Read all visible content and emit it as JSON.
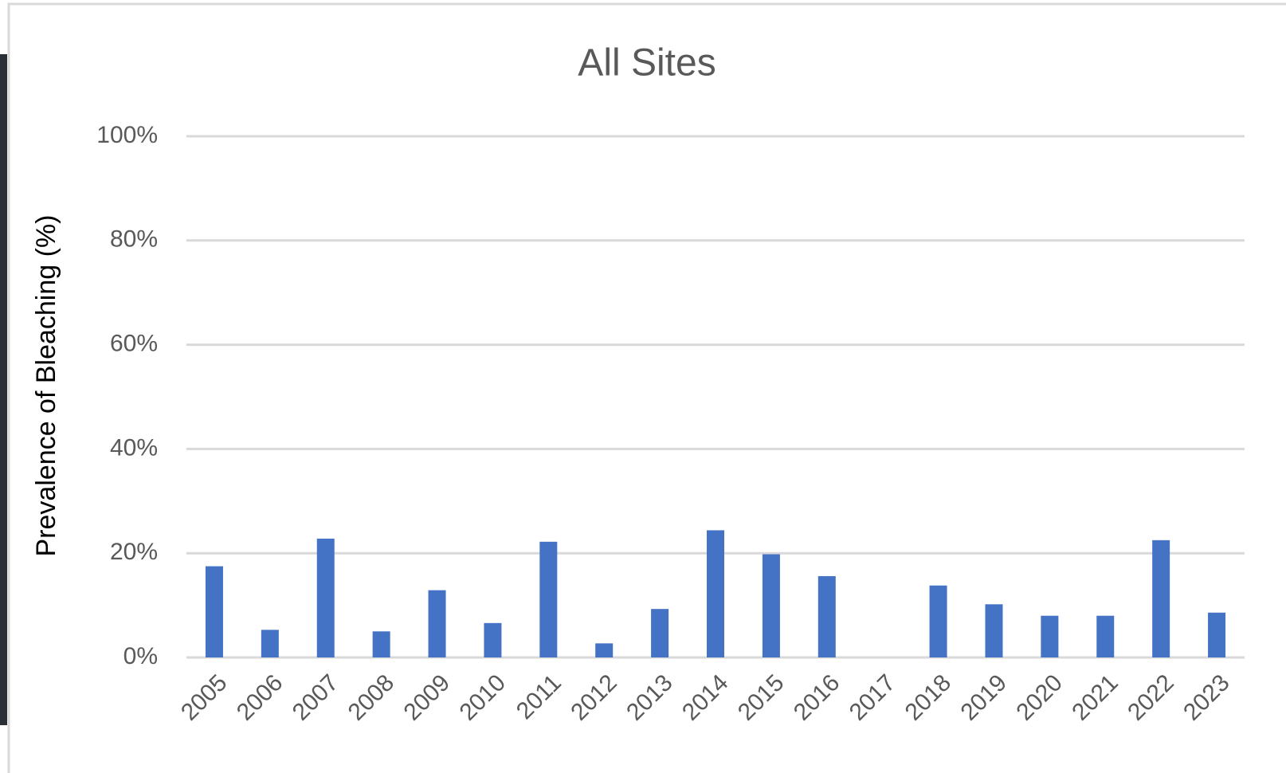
{
  "chart_data": {
    "type": "bar",
    "title": "All Sites",
    "y_label": "Prevalence of Bleaching (%)",
    "categories": [
      "2005",
      "2006",
      "2007",
      "2008",
      "2009",
      "2010",
      "2011",
      "2012",
      "2013",
      "2014",
      "2015",
      "2016",
      "2017",
      "2018",
      "2019",
      "2020",
      "2021",
      "2022",
      "2023"
    ],
    "values": [
      17.5,
      5.3,
      22.8,
      5.0,
      12.9,
      6.6,
      22.2,
      2.7,
      9.3,
      24.4,
      19.8,
      15.6,
      null,
      13.8,
      10.2,
      8.0,
      8.0,
      22.5,
      8.6
    ],
    "color": "#4472c4",
    "ylim": [
      0,
      100
    ],
    "yticks": [
      {
        "value": 0,
        "label": "0%"
      },
      {
        "value": 20,
        "label": "20%"
      },
      {
        "value": 40,
        "label": "40%"
      },
      {
        "value": 60,
        "label": "60%"
      },
      {
        "value": 80,
        "label": "80%"
      },
      {
        "value": 100,
        "label": "100%"
      }
    ],
    "grid": true
  }
}
